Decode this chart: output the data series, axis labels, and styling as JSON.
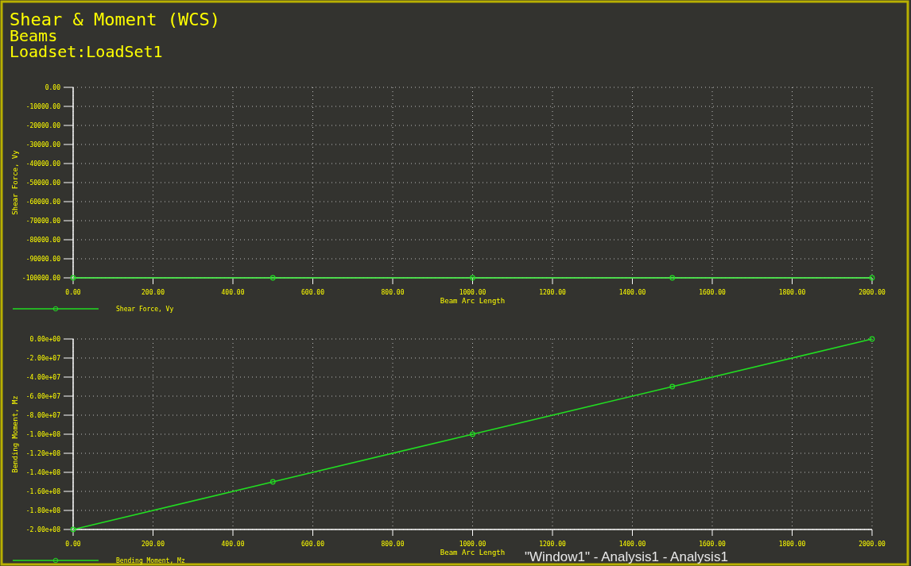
{
  "chart_data": [
    {
      "type": "line",
      "title": "Shear & Moment (WCS)",
      "subtitle": "Beams\nLoadset:LoadSet1",
      "xlabel": "Beam Arc Length",
      "ylabel": "Shear Force, Vy",
      "x": [
        0,
        500,
        1000,
        1500,
        2000
      ],
      "series": [
        {
          "name": "Shear Force, Vy",
          "color": "#22dd22",
          "values": [
            -100000,
            -100000,
            -100000,
            -100000,
            -100000
          ]
        }
      ],
      "xlim": [
        0,
        2000
      ],
      "xticks": [
        {
          "value": 0,
          "label": "0.00"
        },
        {
          "value": 200,
          "label": "200.00"
        },
        {
          "value": 400,
          "label": "400.00"
        },
        {
          "value": 600,
          "label": "600.00"
        },
        {
          "value": 800,
          "label": "800.00"
        },
        {
          "value": 1000,
          "label": "1000.00"
        },
        {
          "value": 1200,
          "label": "1200.00"
        },
        {
          "value": 1400,
          "label": "1400.00"
        },
        {
          "value": 1600,
          "label": "1600.00"
        },
        {
          "value": 1800,
          "label": "1800.00"
        },
        {
          "value": 2000,
          "label": "2000.00"
        }
      ],
      "ylim": [
        -100000,
        0
      ],
      "yticks": [
        {
          "value": 0,
          "label": "0.00"
        },
        {
          "value": -10000,
          "label": "-10000.00"
        },
        {
          "value": -20000,
          "label": "-20000.00"
        },
        {
          "value": -30000,
          "label": "-30000.00"
        },
        {
          "value": -40000,
          "label": "-40000.00"
        },
        {
          "value": -50000,
          "label": "-50000.00"
        },
        {
          "value": -60000,
          "label": "-60000.00"
        },
        {
          "value": -70000,
          "label": "-70000.00"
        },
        {
          "value": -80000,
          "label": "-80000.00"
        },
        {
          "value": -90000,
          "label": "-90000.00"
        },
        {
          "value": -100000,
          "label": "-100000.00"
        }
      ],
      "grid": true,
      "legend": "bottom left",
      "marker": "circle"
    },
    {
      "type": "line",
      "xlabel": "Beam Arc Length",
      "ylabel": "Bending Moment, Mz",
      "annotations": [
        "\"Window1\" - Analysis1 - Analysis1"
      ],
      "x": [
        0,
        500,
        1000,
        1500,
        2000
      ],
      "series": [
        {
          "name": "Bending Moment, Mz",
          "color": "#22dd22",
          "values": [
            -200000000,
            -150000000,
            -100000000,
            -50000000,
            0
          ]
        }
      ],
      "xlim": [
        0,
        2000
      ],
      "xticks": [
        {
          "value": 0,
          "label": "0.00"
        },
        {
          "value": 200,
          "label": "200.00"
        },
        {
          "value": 400,
          "label": "400.00"
        },
        {
          "value": 600,
          "label": "600.00"
        },
        {
          "value": 800,
          "label": "800.00"
        },
        {
          "value": 1000,
          "label": "1000.00"
        },
        {
          "value": 1200,
          "label": "1200.00"
        },
        {
          "value": 1400,
          "label": "1400.00"
        },
        {
          "value": 1600,
          "label": "1600.00"
        },
        {
          "value": 1800,
          "label": "1800.00"
        },
        {
          "value": 2000,
          "label": "2000.00"
        }
      ],
      "ylim": [
        -200000000,
        0
      ],
      "yticks": [
        {
          "value": 0,
          "label": "0.00e+00"
        },
        {
          "value": -20000000,
          "label": "-2.00e+07"
        },
        {
          "value": -40000000,
          "label": "-4.00e+07"
        },
        {
          "value": -60000000,
          "label": "-6.00e+07"
        },
        {
          "value": -80000000,
          "label": "-8.00e+07"
        },
        {
          "value": -100000000,
          "label": "-1.00e+08"
        },
        {
          "value": -120000000,
          "label": "-1.20e+08"
        },
        {
          "value": -140000000,
          "label": "-1.40e+08"
        },
        {
          "value": -160000000,
          "label": "-1.60e+08"
        },
        {
          "value": -180000000,
          "label": "-1.80e+08"
        },
        {
          "value": -200000000,
          "label": "-2.00e+08"
        }
      ],
      "grid": true,
      "legend": "bottom left",
      "marker": "circle"
    }
  ]
}
